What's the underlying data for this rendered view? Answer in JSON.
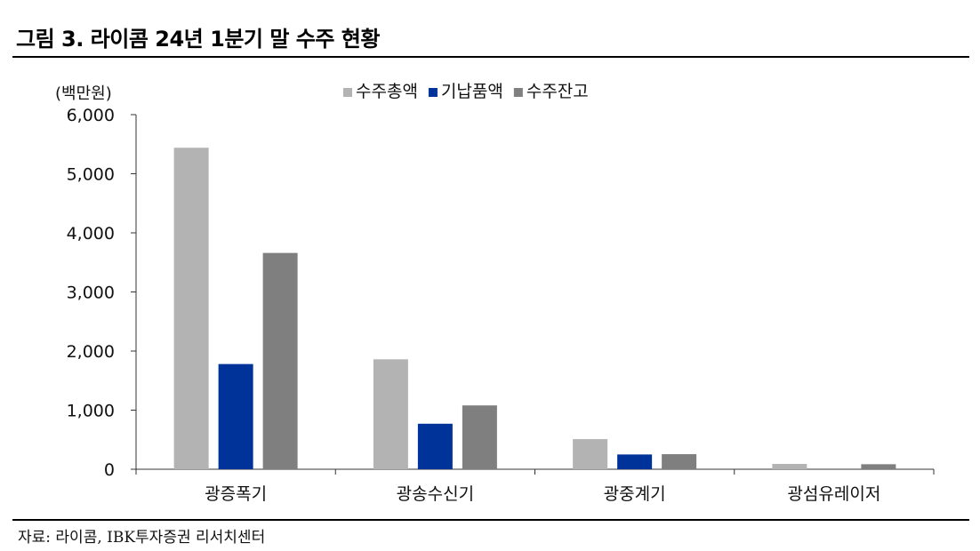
{
  "title": "그림 3. 라이콤 24년 1분기 말 수주 현황",
  "source": "자료: 라이콤, IBK투자증권 리서치센터",
  "chart_data": {
    "type": "bar",
    "unit": "(백만원)",
    "categories": [
      "광증폭기",
      "광송수신기",
      "광중계기",
      "광섬유레이저"
    ],
    "series": [
      {
        "name": "수주총액",
        "color": "#b3b3b3",
        "values": [
          5440,
          1860,
          510,
          90
        ]
      },
      {
        "name": "기납품액",
        "color": "#003399",
        "values": [
          1780,
          770,
          250,
          0
        ]
      },
      {
        "name": "수주잔고",
        "color": "#7f7f7f",
        "values": [
          3660,
          1080,
          255,
          85
        ]
      }
    ],
    "yticks": [
      "0",
      "1,000",
      "2,000",
      "3,000",
      "4,000",
      "5,000",
      "6,000"
    ],
    "ylim": [
      0,
      6000
    ],
    "legend_position": "top"
  }
}
